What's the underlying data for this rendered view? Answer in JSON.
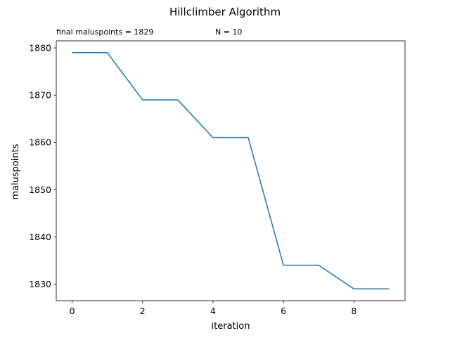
{
  "chart_data": {
    "type": "line",
    "title": "Hillclimber Algorithm",
    "annotations": [
      "final maluspoints = 1829",
      "N = 10"
    ],
    "xlabel": "iteration",
    "ylabel": "maluspoints",
    "xlim": [
      -0.45,
      9.45
    ],
    "ylim": [
      1826.5,
      1881.5
    ],
    "xticks": [
      0,
      2,
      4,
      6,
      8
    ],
    "yticks": [
      1830,
      1840,
      1850,
      1860,
      1870,
      1880
    ],
    "grid": false,
    "series": [
      {
        "color": "#1f77b4",
        "x": [
          0,
          1,
          2,
          3,
          4,
          5,
          6,
          7,
          8,
          9
        ],
        "y": [
          1879,
          1879,
          1869,
          1869,
          1861,
          1861,
          1834,
          1834,
          1829,
          1829
        ]
      }
    ]
  }
}
